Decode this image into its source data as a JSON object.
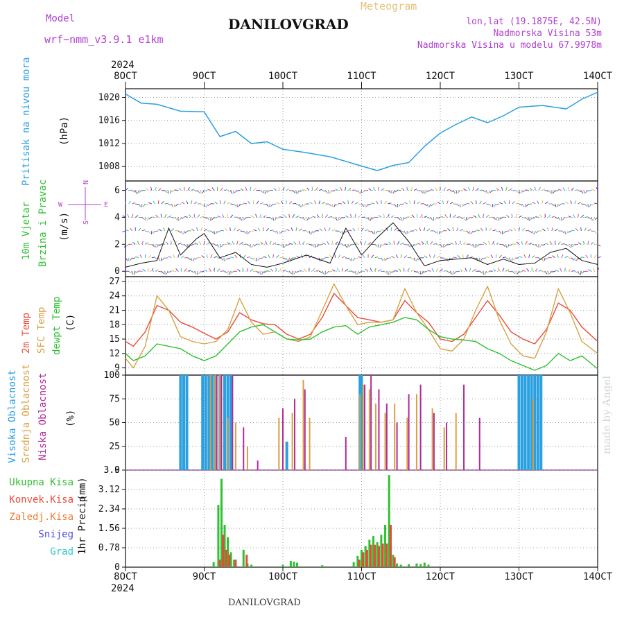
{
  "header": {
    "model_label": "Model",
    "model_name": "wrf−nmm_v3.9.1 e1km",
    "title": "DANILOVGRAD",
    "meteogram_label": "Meteogram",
    "lonlat": "lon,lat (19.1875E, 42.5N)",
    "altitude": "Nadmorska Visina 53m",
    "model_altitude": "Nadmorska Visina u modelu 67.9978m",
    "footer_station": "DANILOVGRAD",
    "made_by": "made by Angel"
  },
  "colors": {
    "pressure": "#2aa0e0",
    "temp2m": "#e84a3a",
    "sfc": "#d8a040",
    "dewpt": "#30c030",
    "high_cloud": "#2aa0e0",
    "mid_cloud": "#d8a040",
    "low_cloud": "#b02a9a",
    "total_precip": "#30c030",
    "conv_precip": "#e84a3a",
    "frz_precip": "#f07a30",
    "snow": "#4a4ae0",
    "grad": "#30c8c8",
    "wind_axis_label": "#b040d0"
  },
  "chart_data": [
    {
      "type": "line",
      "name": "pressure",
      "ylabel_top": "Pritisak na nivou mora",
      "unit": "(hPa)",
      "x_labels": [
        "8OCT",
        "9OCT",
        "10OCT",
        "11OCT",
        "12OCT",
        "13OCT",
        "14OCT"
      ],
      "x_year": "2024",
      "ylim": [
        1005.5,
        1021.5
      ],
      "yticks": [
        "1008",
        "1012",
        "1016",
        "1020"
      ],
      "x": [
        0,
        0.2,
        0.4,
        0.7,
        1.0,
        1.2,
        1.4,
        1.6,
        1.8,
        2.0,
        2.3,
        2.6,
        2.9,
        3.2,
        3.4,
        3.6,
        3.8,
        4.0,
        4.2,
        4.4,
        4.6,
        4.8,
        5.0,
        5.3,
        5.6,
        5.8,
        6.0
      ],
      "values": [
        1020.6,
        1019.0,
        1018.8,
        1017.6,
        1017.5,
        1013.2,
        1014.1,
        1012.0,
        1012.3,
        1011.0,
        1010.4,
        1009.7,
        1008.5,
        1007.3,
        1008.2,
        1008.7,
        1011.5,
        1013.8,
        1015.3,
        1016.6,
        1015.6,
        1016.8,
        1018.3,
        1018.6,
        1018.0,
        1019.7,
        1020.9
      ],
      "grid": true
    },
    {
      "type": "line",
      "name": "wind",
      "ylabel_top": "10m Vjetar",
      "ylabel_bottom": "Brzina i Pravac",
      "unit": "(m/s)",
      "compass_top": "N",
      "compass_bottom": "S",
      "compass_left": "W",
      "compass_right": "E",
      "ylim": [
        -0.4,
        6.7
      ],
      "yticks": [
        "0",
        "2",
        "4",
        "6"
      ],
      "x": [
        0,
        0.2,
        0.4,
        0.55,
        0.7,
        0.9,
        1.0,
        1.2,
        1.4,
        1.6,
        1.8,
        2.0,
        2.3,
        2.6,
        2.8,
        3.0,
        3.2,
        3.4,
        3.6,
        3.8,
        4.0,
        4.2,
        4.4,
        4.6,
        4.8,
        5.0,
        5.2,
        5.4,
        5.6,
        5.8,
        6.0
      ],
      "values": [
        0.3,
        0.6,
        0.8,
        3.2,
        1.2,
        2.4,
        2.8,
        1.0,
        1.4,
        0.5,
        0.3,
        0.6,
        1.2,
        0.6,
        3.2,
        1.2,
        2.5,
        3.6,
        2.2,
        0.4,
        0.8,
        0.9,
        1.0,
        0.5,
        0.9,
        0.5,
        0.6,
        1.4,
        1.7,
        0.8,
        0.5
      ],
      "grid": true
    },
    {
      "type": "line",
      "name": "temperature",
      "ylabels": [
        "2m Temp",
        "SFC Temp",
        "dewpt Temp"
      ],
      "unit": "(C)",
      "ylim": [
        7.5,
        28
      ],
      "yticks": [
        "9",
        "12",
        "15",
        "18",
        "21",
        "24",
        "27"
      ],
      "x": [
        0,
        0.1,
        0.25,
        0.4,
        0.55,
        0.7,
        0.85,
        1.0,
        1.15,
        1.3,
        1.45,
        1.6,
        1.75,
        1.9,
        2.05,
        2.2,
        2.35,
        2.5,
        2.65,
        2.8,
        2.95,
        3.1,
        3.25,
        3.4,
        3.55,
        3.7,
        3.85,
        4.0,
        4.15,
        4.3,
        4.45,
        4.6,
        4.75,
        4.9,
        5.05,
        5.2,
        5.35,
        5.5,
        5.65,
        5.8,
        6.0
      ],
      "series": [
        {
          "name": "2m Temp",
          "values": [
            14.5,
            13.5,
            16.5,
            22.0,
            21.0,
            18.5,
            17.5,
            16.2,
            15.0,
            16.5,
            20.5,
            19.0,
            18.2,
            18.0,
            16.0,
            15.0,
            16.0,
            19.5,
            24.5,
            22.0,
            19.5,
            19.0,
            18.5,
            19.0,
            23.0,
            20.5,
            18.5,
            15.0,
            14.5,
            16.0,
            19.5,
            23.0,
            20.0,
            16.5,
            15.0,
            14.0,
            17.0,
            22.5,
            21.0,
            17.5,
            14.5
          ]
        },
        {
          "name": "SFC Temp",
          "values": [
            11.0,
            9.0,
            13.5,
            24.0,
            21.0,
            15.5,
            14.5,
            14.0,
            14.5,
            17.0,
            23.5,
            18.5,
            16.0,
            16.5,
            15.0,
            14.5,
            15.5,
            21.0,
            26.5,
            22.0,
            18.0,
            18.5,
            18.5,
            19.0,
            25.5,
            20.5,
            17.0,
            13.0,
            12.5,
            15.0,
            21.0,
            26.0,
            19.0,
            14.0,
            11.5,
            11.0,
            16.5,
            25.5,
            20.5,
            14.5,
            12.0
          ]
        },
        {
          "name": "dewpt Temp",
          "values": [
            12.0,
            10.5,
            11.5,
            14.0,
            13.5,
            13.0,
            11.5,
            10.5,
            11.5,
            14.0,
            16.5,
            17.5,
            18.0,
            16.5,
            15.0,
            14.8,
            15.0,
            16.5,
            17.5,
            17.8,
            16.0,
            17.5,
            18.0,
            18.5,
            19.5,
            19.0,
            17.0,
            15.5,
            15.0,
            14.8,
            14.5,
            13.0,
            12.0,
            10.5,
            9.5,
            8.5,
            9.5,
            12.0,
            10.5,
            11.5,
            8.8
          ]
        }
      ],
      "grid": true
    },
    {
      "type": "bar",
      "name": "cloud",
      "ylabels": [
        "Visoka Oblacnost",
        "Srednja Oblacnost",
        "Niska Oblacnost"
      ],
      "unit": "(%)",
      "ylim": [
        0,
        100
      ],
      "yticks": [
        "0",
        "25",
        "50",
        "75",
        "100"
      ],
      "series": [
        {
          "name": "Visoka Oblacnost",
          "x": [
            0.7,
            0.74,
            0.78,
            0.98,
            1.02,
            1.06,
            1.1,
            1.14,
            1.2,
            1.26,
            1.3,
            1.34,
            2.05,
            2.98,
            3.0,
            5.0,
            5.04,
            5.08,
            5.12,
            5.16,
            5.2,
            5.24,
            5.28
          ],
          "values": [
            100,
            100,
            100,
            100,
            100,
            100,
            100,
            100,
            100,
            100,
            100,
            100,
            30,
            100,
            100,
            100,
            100,
            100,
            100,
            100,
            100,
            100,
            100
          ]
        },
        {
          "name": "Srednja Oblacnost",
          "x": [
            1.08,
            1.14,
            1.2,
            1.3,
            1.4,
            1.55,
            1.95,
            2.12,
            2.26,
            2.34,
            2.98,
            3.02,
            3.1,
            3.18,
            3.3,
            3.42,
            3.58,
            3.7,
            3.9,
            4.05,
            4.2,
            5.18
          ],
          "values": [
            100,
            100,
            100,
            55,
            50,
            25,
            55,
            60,
            95,
            55,
            80,
            90,
            85,
            70,
            60,
            70,
            55,
            80,
            65,
            45,
            60,
            75
          ]
        },
        {
          "name": "Niska Oblacnost",
          "x": [
            1.16,
            1.22,
            1.36,
            1.5,
            1.68,
            2.0,
            2.15,
            2.28,
            2.8,
            3.04,
            3.12,
            3.22,
            3.32,
            3.45,
            3.6,
            3.75,
            3.92,
            4.08,
            4.3,
            4.5
          ],
          "values": [
            100,
            100,
            100,
            45,
            10,
            65,
            75,
            85,
            35,
            90,
            100,
            85,
            70,
            50,
            80,
            90,
            60,
            50,
            90,
            55
          ]
        }
      ],
      "grid": true
    },
    {
      "type": "bar",
      "name": "precipitation",
      "ylabel": "1hr Precip",
      "unit": "(mm)",
      "legend": [
        "Ukupna Kisa",
        "Konvek.Kisa",
        "Zaledj.Kisa",
        "Snijeg",
        "Grad"
      ],
      "ylim": [
        0,
        3.9
      ],
      "yticks": [
        "0",
        "0.78",
        "1.56",
        "2.34",
        "3.12",
        "3.9"
      ],
      "series": [
        {
          "name": "Ukupna Kisa",
          "x": [
            1.12,
            1.18,
            1.22,
            1.26,
            1.3,
            1.34,
            1.38,
            1.5,
            1.55,
            1.6,
            2.0,
            2.1,
            2.14,
            2.18,
            2.5,
            2.9,
            2.95,
            3.0,
            3.05,
            3.1,
            3.15,
            3.2,
            3.25,
            3.3,
            3.35,
            3.4,
            3.45,
            3.5,
            3.6,
            3.7,
            3.75,
            3.8,
            3.85
          ],
          "values": [
            0.2,
            2.5,
            3.55,
            1.7,
            1.2,
            0.6,
            0.3,
            0.7,
            0.15,
            0.1,
            0.1,
            0.25,
            0.22,
            0.18,
            0.08,
            0.2,
            0.45,
            0.7,
            0.85,
            1.1,
            1.25,
            1.0,
            1.3,
            1.7,
            3.7,
            0.5,
            0.15,
            0.1,
            0.12,
            0.15,
            0.12,
            0.18,
            0.1
          ],
          "color": "#30c030"
        },
        {
          "name": "Konvek.Kisa",
          "x": [
            1.2,
            1.24,
            1.28,
            1.32,
            1.4,
            1.54,
            2.97,
            3.02,
            3.07,
            3.12,
            3.17,
            3.22,
            3.27,
            3.32,
            3.37,
            3.42
          ],
          "values": [
            0.3,
            1.3,
            0.7,
            0.5,
            0.3,
            0.5,
            0.3,
            0.6,
            0.7,
            0.9,
            0.9,
            0.85,
            0.95,
            0.95,
            1.7,
            0.4
          ],
          "color": "#e84a3a"
        },
        {
          "name": "Zaledj.Kisa",
          "x": [],
          "values": [],
          "color": "#f07a30"
        },
        {
          "name": "Snijeg",
          "x": [],
          "values": [],
          "color": "#4a4ae0"
        },
        {
          "name": "Grad",
          "x": [],
          "values": [],
          "color": "#30c8c8"
        }
      ],
      "grid": true
    }
  ]
}
